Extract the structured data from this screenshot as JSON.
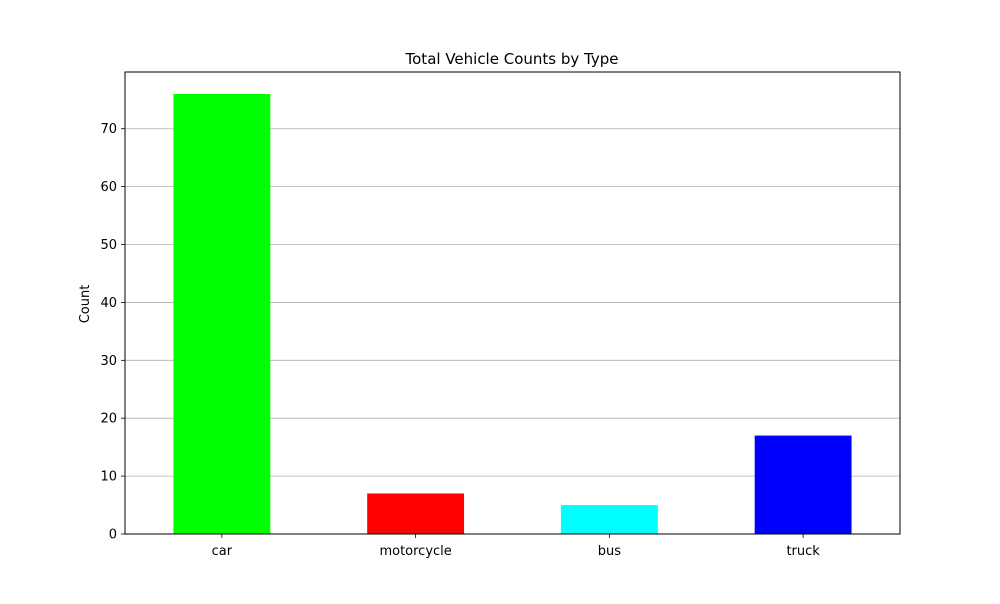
{
  "chart_data": {
    "type": "bar",
    "title": "Total Vehicle Counts by Type",
    "xlabel": "",
    "ylabel": "Count",
    "categories": [
      "car",
      "motorcycle",
      "bus",
      "truck"
    ],
    "values": [
      76,
      7,
      5,
      17
    ],
    "colors": [
      "#00ff00",
      "#ff0000",
      "#00ffff",
      "#0000ff"
    ],
    "ylim": [
      0,
      79.8
    ],
    "yticks": [
      0,
      10,
      20,
      30,
      40,
      50,
      60,
      70
    ],
    "grid": "horizontal",
    "legend": "none"
  }
}
